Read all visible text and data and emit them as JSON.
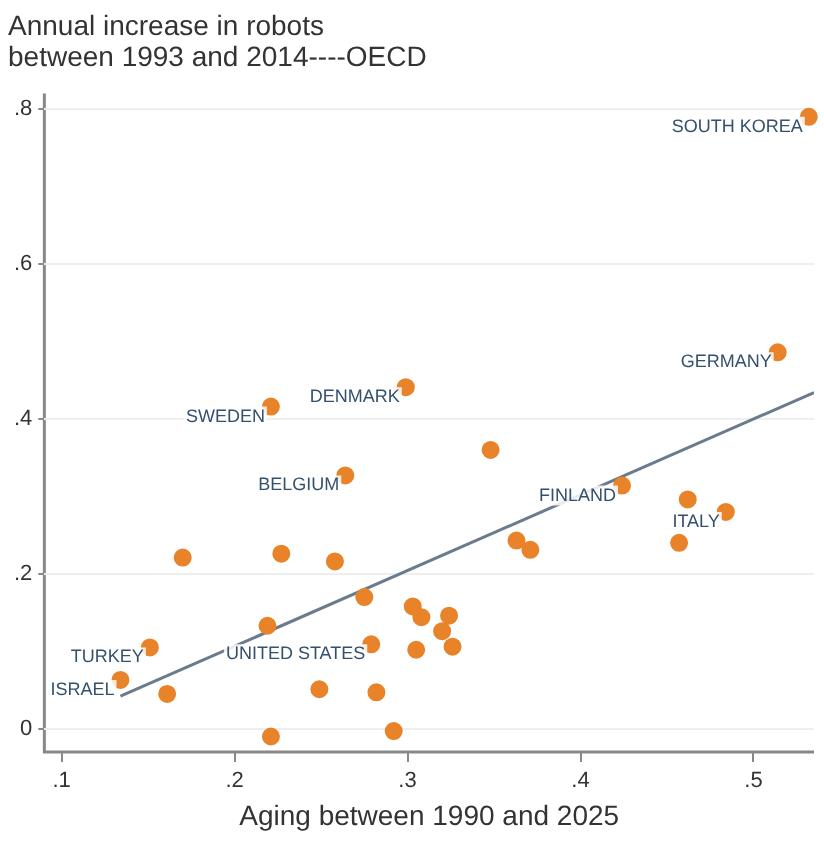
{
  "chart_data": {
    "type": "scatter",
    "title": "Annual increase in robots\nbetween 1993 and 2014----OECD",
    "xlabel": "Aging between 1990 and 2025",
    "xlim": [
      0.09,
      0.535
    ],
    "ylim": [
      -0.03,
      0.82
    ],
    "xticks": [
      {
        "value": 0.1,
        "label": ".1"
      },
      {
        "value": 0.2,
        "label": ".2"
      },
      {
        "value": 0.3,
        "label": ".3"
      },
      {
        "value": 0.4,
        "label": ".4"
      },
      {
        "value": 0.5,
        "label": ".5"
      }
    ],
    "yticks": [
      {
        "value": 0,
        "label": "0"
      },
      {
        "value": 0.2,
        "label": ".2"
      },
      {
        "value": 0.4,
        "label": ".4"
      },
      {
        "value": 0.6,
        "label": ".6"
      },
      {
        "value": 0.8,
        "label": ".8"
      }
    ],
    "grid": "y",
    "legend": false,
    "marker": "circle",
    "series": [
      {
        "color": "#e8832a",
        "x": [
          0.532,
          0.514,
          0.221,
          0.299,
          0.348,
          0.264,
          0.424,
          0.462,
          0.484,
          0.363,
          0.371,
          0.457,
          0.17,
          0.227,
          0.258,
          0.275,
          0.219,
          0.303,
          0.308,
          0.324,
          0.32,
          0.326,
          0.305,
          0.279,
          0.151,
          0.134,
          0.161,
          0.249,
          0.282,
          0.221,
          0.292
        ],
        "values": [
          0.79,
          0.486,
          0.416,
          0.441,
          0.36,
          0.327,
          0.314,
          0.296,
          0.28,
          0.243,
          0.231,
          0.24,
          0.221,
          0.226,
          0.216,
          0.17,
          0.133,
          0.158,
          0.144,
          0.146,
          0.126,
          0.106,
          0.102,
          0.109,
          0.105,
          0.063,
          0.045,
          0.051,
          0.047,
          -0.01,
          -0.003
        ]
      },
      {
        "type": "line",
        "color": "#6b7b8c",
        "line_style": "solid",
        "marker": "none",
        "x": [
          0.134,
          0.535
        ],
        "values": [
          0.042,
          0.434
        ]
      }
    ],
    "annotations": [
      {
        "text": "SOUTH KOREA",
        "x": 0.532,
        "y": 0.79
      },
      {
        "text": "GERMANY",
        "x": 0.514,
        "y": 0.486
      },
      {
        "text": "SWEDEN",
        "x": 0.221,
        "y": 0.416
      },
      {
        "text": "DENMARK",
        "x": 0.299,
        "y": 0.441
      },
      {
        "text": "BELGIUM",
        "x": 0.264,
        "y": 0.327
      },
      {
        "text": "FINLAND",
        "x": 0.424,
        "y": 0.314
      },
      {
        "text": "ITALY",
        "x": 0.484,
        "y": 0.28
      },
      {
        "text": "UNITED STATES",
        "x": 0.279,
        "y": 0.109
      },
      {
        "text": "TURKEY",
        "x": 0.151,
        "y": 0.105
      },
      {
        "text": "ISRAEL",
        "x": 0.134,
        "y": 0.063
      }
    ]
  }
}
